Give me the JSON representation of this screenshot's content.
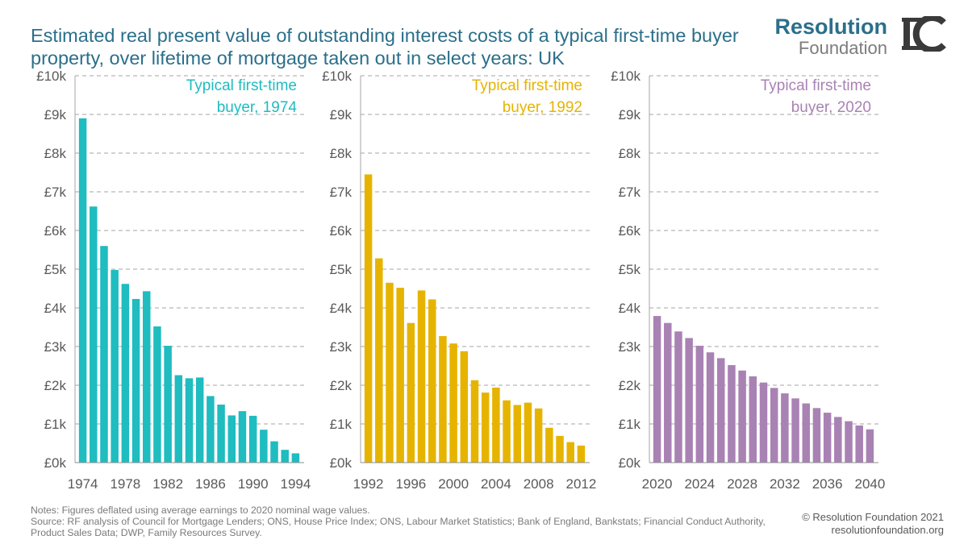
{
  "title": "Estimated real present value of outstanding interest costs of a typical first-time buyer property, over lifetime of mortgage taken out in select years: UK",
  "logo": {
    "top": "Resolution",
    "bottom": "Foundation"
  },
  "notes": {
    "line1": "Notes: Figures deflated using average earnings to 2020 nominal wage values.",
    "line2": "Source: RF analysis of Council for Mortgage Lenders; ONS, House Price Index; ONS, Labour Market Statistics; Bank of England, Bankstats; Financial Conduct Authority,",
    "line3": "Product Sales Data; DWP, Family Resources Survey."
  },
  "copyright": {
    "line1": "© Resolution Foundation 2021",
    "line2": "resolutionfoundation.org"
  },
  "chart_data": [
    {
      "type": "bar",
      "label_line1": "Typical first-time",
      "label_line2": "buyer, 1974",
      "color": "#1fbcc0",
      "ylim": [
        0,
        10000
      ],
      "yticks": [
        "£0k",
        "£1k",
        "£2k",
        "£3k",
        "£4k",
        "£5k",
        "£6k",
        "£7k",
        "£8k",
        "£9k",
        "£10k"
      ],
      "xticks": [
        "1974",
        "1978",
        "1982",
        "1986",
        "1990",
        "1994"
      ],
      "categories": [
        "1974",
        "1975",
        "1976",
        "1977",
        "1978",
        "1979",
        "1980",
        "1981",
        "1982",
        "1983",
        "1984",
        "1985",
        "1986",
        "1987",
        "1988",
        "1989",
        "1990",
        "1991",
        "1992",
        "1993",
        "1994"
      ],
      "values": [
        8900,
        6620,
        5600,
        4980,
        4620,
        4230,
        4430,
        3520,
        3020,
        2260,
        2180,
        2200,
        1720,
        1500,
        1220,
        1330,
        1210,
        850,
        550,
        330,
        240
      ]
    },
    {
      "type": "bar",
      "label_line1": "Typical first-time",
      "label_line2": "buyer, 1992",
      "color": "#e6b400",
      "ylim": [
        0,
        10000
      ],
      "yticks": [
        "£0k",
        "£1k",
        "£2k",
        "£3k",
        "£4k",
        "£5k",
        "£6k",
        "£7k",
        "£8k",
        "£9k",
        "£10k"
      ],
      "xticks": [
        "1992",
        "1996",
        "2000",
        "2004",
        "2008",
        "2012"
      ],
      "categories": [
        "1992",
        "1993",
        "1994",
        "1995",
        "1996",
        "1997",
        "1998",
        "1999",
        "2000",
        "2001",
        "2002",
        "2003",
        "2004",
        "2005",
        "2006",
        "2007",
        "2008",
        "2009",
        "2010",
        "2011",
        "2012"
      ],
      "values": [
        7450,
        5280,
        4650,
        4520,
        3610,
        4450,
        4220,
        3270,
        3080,
        2880,
        2130,
        1810,
        1940,
        1610,
        1490,
        1550,
        1400,
        900,
        690,
        530,
        440
      ]
    },
    {
      "type": "bar",
      "label_line1": "Typical first-time",
      "label_line2": "buyer, 2020",
      "color": "#a982b4",
      "ylim": [
        0,
        10000
      ],
      "yticks": [
        "£0k",
        "£1k",
        "£2k",
        "£3k",
        "£4k",
        "£5k",
        "£6k",
        "£7k",
        "£8k",
        "£9k",
        "£10k"
      ],
      "xticks": [
        "2020",
        "2024",
        "2028",
        "2032",
        "2036",
        "2040"
      ],
      "categories": [
        "2020",
        "2021",
        "2022",
        "2023",
        "2024",
        "2025",
        "2026",
        "2027",
        "2028",
        "2029",
        "2030",
        "2031",
        "2032",
        "2033",
        "2034",
        "2035",
        "2036",
        "2037",
        "2038",
        "2039",
        "2040"
      ],
      "values": [
        3790,
        3610,
        3390,
        3220,
        3020,
        2850,
        2700,
        2520,
        2380,
        2230,
        2070,
        1930,
        1790,
        1660,
        1530,
        1410,
        1290,
        1180,
        1070,
        960,
        860
      ]
    }
  ]
}
